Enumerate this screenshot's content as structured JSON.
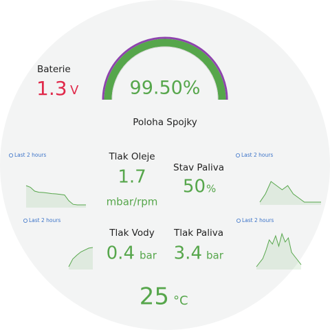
{
  "battery": {
    "label": "Baterie",
    "value": "1.3",
    "unit": "V"
  },
  "gauge": {
    "value": "99.50%",
    "label": "Poloha Spojky"
  },
  "oil_pressure": {
    "label": "Tlak Oleje",
    "value": "1.7",
    "unit": "mbar/rpm"
  },
  "fuel_level": {
    "label": "Stav Paliva",
    "value": "50",
    "unit": "%"
  },
  "water_pressure": {
    "label": "Tlak Vody",
    "value": "0.4",
    "unit": "bar"
  },
  "fuel_pressure": {
    "label": "Tlak Paliva",
    "value": "3.4",
    "unit": "bar"
  },
  "temperature": {
    "value": "25",
    "unit": "°C"
  },
  "sparklines": [
    {
      "label": "Last 2 hours",
      "values": [
        10,
        9.4,
        8,
        7.6,
        7.5,
        7.3,
        7.1,
        7,
        6.8,
        6.6,
        4.5,
        3.2,
        3,
        3,
        3
      ]
    },
    {
      "label": "Last 2 hours",
      "values": [
        5,
        5.2,
        5.5,
        5.4,
        5.3,
        5.4,
        5.2,
        5.1,
        5,
        5,
        5,
        5
      ]
    },
    {
      "label": "Last 2 hours",
      "values": [
        1,
        2.2,
        2.8,
        3.3,
        3.6,
        3.9,
        4
      ]
    },
    {
      "label": "Last 2 hours",
      "values": [
        1,
        2,
        3,
        5,
        7.5,
        6.5,
        8.5,
        6,
        9,
        7,
        8,
        4.5,
        3.5,
        2.5,
        1.5
      ]
    }
  ]
}
